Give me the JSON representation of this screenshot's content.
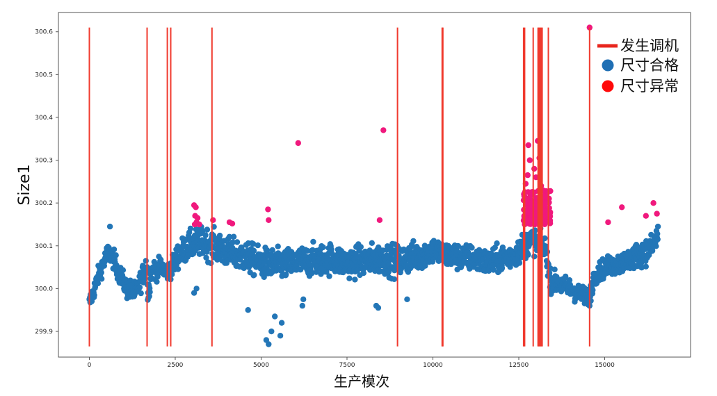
{
  "chart_data": {
    "type": "scatter",
    "xlabel": "生产模次",
    "ylabel": "Size1",
    "xlim": [
      -900,
      17500
    ],
    "ylim": [
      299.84,
      300.645
    ],
    "xticks": [
      0,
      2500,
      5000,
      7500,
      10000,
      12500,
      15000
    ],
    "xtick_labels": [
      "0",
      "2500",
      "5000",
      "7500",
      "10000",
      "12500",
      "15000"
    ],
    "yticks": [
      299.9,
      300.0,
      300.1,
      300.2,
      300.3,
      300.4,
      300.5,
      300.6
    ],
    "ytick_labels": [
      "299.9",
      "300.0",
      "300.1",
      "300.2",
      "300.3",
      "300.4",
      "300.5",
      "300.6"
    ],
    "grid": false,
    "legend_position": "top-right",
    "legend": [
      {
        "label": "发生调机",
        "marker": "line",
        "color": "#e8261d"
      },
      {
        "label": "尺寸合格",
        "marker": "circle",
        "color": "#1f6fb4"
      },
      {
        "label": "尺寸异常",
        "marker": "circle",
        "color": "#ff0a0a"
      }
    ],
    "adjustment_lines": {
      "name": "发生调机",
      "color": "#f03a2e",
      "y_range": [
        299.865,
        300.61
      ],
      "x": [
        0,
        1680,
        2270,
        2370,
        3570,
        8970,
        10270,
        10290,
        12640,
        12670,
        12920,
        13060,
        13090,
        13120,
        13150,
        13180,
        13360,
        14560
      ]
    },
    "normal_series": {
      "name": "尺寸合格",
      "color": "#2376b7",
      "x_range": [
        0,
        16550
      ],
      "upper_limit": 300.145,
      "trend": [
        [
          0,
          299.965
        ],
        [
          150,
          300.0
        ],
        [
          300,
          300.04
        ],
        [
          550,
          300.085
        ],
        [
          700,
          300.07
        ],
        [
          900,
          300.03
        ],
        [
          1100,
          300.0
        ],
        [
          1350,
          299.99
        ],
        [
          1550,
          300.03
        ],
        [
          1680,
          300.06
        ],
        [
          1700,
          299.98
        ],
        [
          1800,
          300.04
        ],
        [
          2100,
          300.05
        ],
        [
          2270,
          300.04
        ],
        [
          2400,
          300.05
        ],
        [
          2600,
          300.08
        ],
        [
          2900,
          300.1
        ],
        [
          3300,
          300.11
        ],
        [
          3600,
          300.1
        ],
        [
          4000,
          300.085
        ],
        [
          4500,
          300.075
        ],
        [
          5000,
          300.06
        ],
        [
          5500,
          300.055
        ],
        [
          6000,
          300.06
        ],
        [
          6500,
          300.065
        ],
        [
          7000,
          300.07
        ],
        [
          7500,
          300.06
        ],
        [
          8000,
          300.065
        ],
        [
          8500,
          300.07
        ],
        [
          9000,
          300.065
        ],
        [
          9500,
          300.075
        ],
        [
          10000,
          300.09
        ],
        [
          10300,
          300.08
        ],
        [
          10700,
          300.075
        ],
        [
          11200,
          300.07
        ],
        [
          11600,
          300.06
        ],
        [
          12000,
          300.07
        ],
        [
          12400,
          300.08
        ],
        [
          12640,
          300.1
        ],
        [
          12900,
          300.115
        ],
        [
          13150,
          300.1
        ],
        [
          13300,
          300.09
        ],
        [
          13400,
          300.02
        ],
        [
          13700,
          300.01
        ],
        [
          14000,
          300.0
        ],
        [
          14300,
          299.985
        ],
        [
          14560,
          299.98
        ],
        [
          14700,
          300.03
        ],
        [
          15000,
          300.05
        ],
        [
          15500,
          300.06
        ],
        [
          16000,
          300.08
        ],
        [
          16300,
          300.09
        ],
        [
          16550,
          300.12
        ]
      ],
      "spread": [
        [
          0,
          0.02
        ],
        [
          1600,
          0.025
        ],
        [
          2300,
          0.02
        ],
        [
          2600,
          0.03
        ],
        [
          3600,
          0.035
        ],
        [
          5000,
          0.035
        ],
        [
          9000,
          0.035
        ],
        [
          10300,
          0.03
        ],
        [
          12640,
          0.03
        ],
        [
          13360,
          0.025
        ],
        [
          14560,
          0.02
        ],
        [
          16550,
          0.03
        ]
      ],
      "outliers": [
        [
          600,
          300.145
        ],
        [
          3050,
          299.99
        ],
        [
          3120,
          300.0
        ],
        [
          4620,
          299.95
        ],
        [
          5150,
          299.88
        ],
        [
          5220,
          299.87
        ],
        [
          5300,
          299.9
        ],
        [
          5400,
          299.935
        ],
        [
          5560,
          299.89
        ],
        [
          5600,
          299.92
        ],
        [
          6200,
          299.96
        ],
        [
          6230,
          299.975
        ],
        [
          8350,
          299.96
        ],
        [
          8410,
          299.955
        ],
        [
          9250,
          299.975
        ],
        [
          12900,
          300.125
        ],
        [
          14560,
          299.96
        ],
        [
          16550,
          300.145
        ]
      ]
    },
    "abnormal_series": {
      "name": "尺寸异常",
      "color": "#f0197d",
      "points": [
        [
          3050,
          300.195
        ],
        [
          3100,
          300.19
        ],
        [
          3080,
          300.17
        ],
        [
          3150,
          300.165
        ],
        [
          3120,
          300.155
        ],
        [
          3070,
          300.15
        ],
        [
          3200,
          300.15
        ],
        [
          3600,
          300.16
        ],
        [
          4080,
          300.155
        ],
        [
          4160,
          300.152
        ],
        [
          5200,
          300.185
        ],
        [
          5220,
          300.16
        ],
        [
          6080,
          300.34
        ],
        [
          8450,
          300.16
        ],
        [
          8560,
          300.37
        ],
        [
          12780,
          300.335
        ],
        [
          12820,
          300.3
        ],
        [
          13050,
          300.345
        ],
        [
          13100,
          300.305
        ],
        [
          12760,
          300.265
        ],
        [
          12700,
          300.245
        ],
        [
          12950,
          300.28
        ],
        [
          13000,
          300.26
        ],
        [
          13150,
          300.24
        ],
        [
          13200,
          300.23
        ],
        [
          13250,
          300.215
        ],
        [
          13300,
          300.2
        ],
        [
          13350,
          300.175
        ],
        [
          13100,
          300.26
        ],
        [
          12900,
          300.22
        ],
        [
          12850,
          300.2
        ],
        [
          12700,
          300.18
        ],
        [
          12650,
          300.16
        ],
        [
          14560,
          300.61
        ],
        [
          15100,
          300.155
        ],
        [
          15500,
          300.19
        ],
        [
          16200,
          300.17
        ],
        [
          16420,
          300.2
        ],
        [
          16520,
          300.175
        ]
      ],
      "cluster": {
        "x_range": [
          12640,
          13420
        ],
        "y_range": [
          300.15,
          300.23
        ],
        "count": 170
      }
    }
  }
}
